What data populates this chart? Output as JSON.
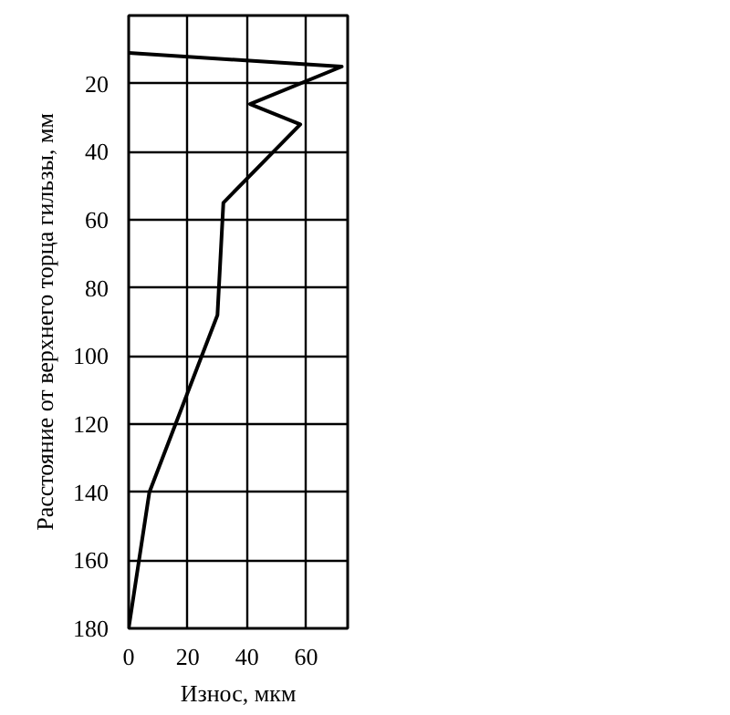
{
  "chart_data": {
    "type": "line",
    "xlabel": "Износ, мкм",
    "ylabel": "Расстояние от верхнего торца гильзы, мм",
    "x": [
      0,
      72,
      41,
      58,
      32,
      30,
      7,
      0
    ],
    "values": [
      11,
      15,
      26,
      32,
      55,
      88,
      140,
      180
    ],
    "color": "#000000",
    "xlim": [
      0,
      74
    ],
    "xticks": [
      0,
      20,
      40,
      60
    ],
    "ylim": [
      180,
      0
    ],
    "yticks": [
      20,
      40,
      60,
      80,
      100,
      120,
      140,
      160,
      180
    ],
    "grid": true,
    "marker": "none",
    "line_style": "solid"
  }
}
